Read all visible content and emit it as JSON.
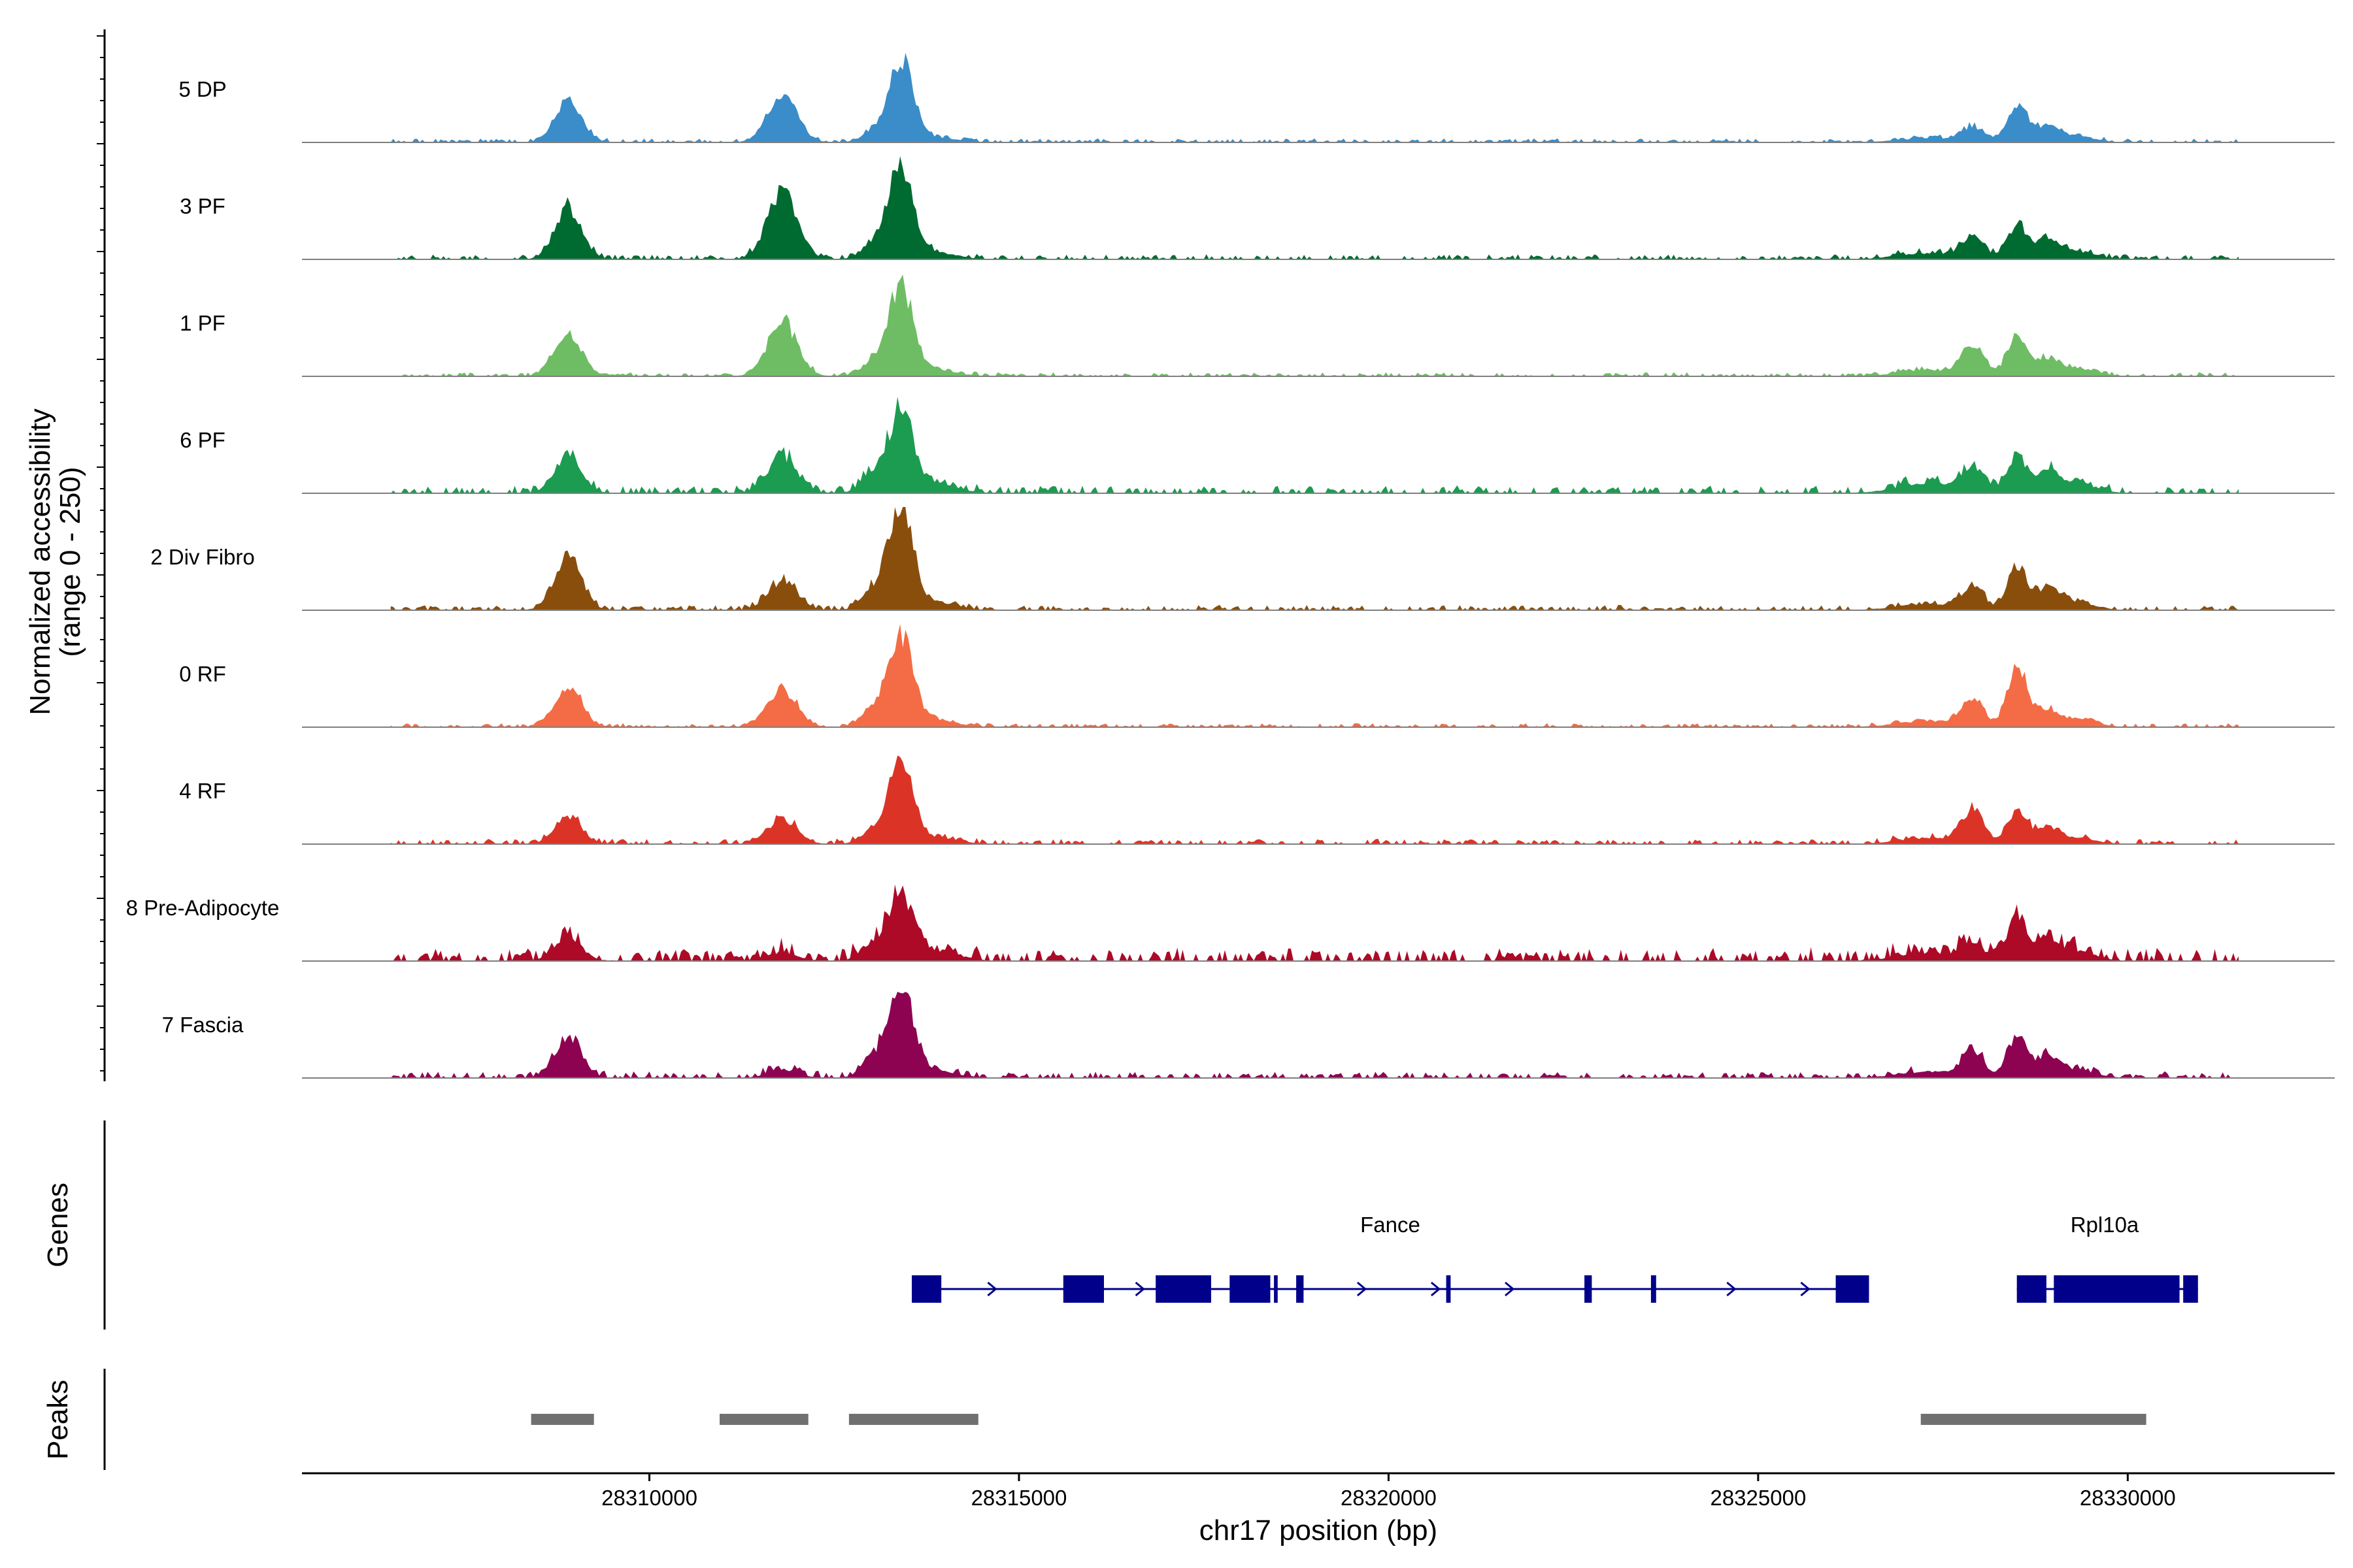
{
  "chart_data": {
    "type": "area",
    "title": "",
    "xlabel": "chr17 position (bp)",
    "ylabel": "Normalized accessibility",
    "ylabel_sub": "(range 0 - 250)",
    "y_range": [
      0,
      250
    ],
    "xlim": [
      28305300,
      28332800
    ],
    "x_ticks": [
      28310000,
      28315000,
      28320000,
      28325000,
      28330000
    ],
    "x_tick_labels": [
      "28310000",
      "28315000",
      "28320000",
      "28325000",
      "28330000"
    ],
    "track_labels": {
      "genes": "Genes",
      "peaks": "Peaks"
    },
    "region": [
      28306500,
      28331500
    ],
    "peak_shape_kb": [
      [
        28308900,
        0.18,
        45
      ],
      [
        28311800,
        0.2,
        48
      ],
      [
        28313400,
        0.17,
        70
      ],
      [
        28313000,
        0.15,
        25
      ],
      [
        28313900,
        0.28,
        20
      ],
      [
        28327900,
        0.15,
        25
      ],
      [
        28328500,
        0.13,
        55
      ],
      [
        28328900,
        0.15,
        25
      ],
      [
        28329300,
        0.25,
        15
      ],
      [
        28327300,
        0.4,
        12
      ]
    ],
    "series": [
      {
        "name": "5 DP",
        "color": "#3A8DC9",
        "peaks": [
          100,
          110,
          200,
          20,
          10,
          35,
          90,
          40,
          15,
          10
        ],
        "noise": 3,
        "seed": 1
      },
      {
        "name": "3 PF",
        "color": "#006B31",
        "peaks": [
          120,
          160,
          220,
          30,
          15,
          50,
          80,
          40,
          20,
          15
        ],
        "noise": 4,
        "seed": 2
      },
      {
        "name": "1 PF",
        "color": "#6EBD64",
        "peaks": [
          110,
          130,
          220,
          30,
          12,
          70,
          100,
          40,
          20,
          15
        ],
        "noise": 3,
        "seed": 3
      },
      {
        "name": "6 PF",
        "color": "#1B9C50",
        "peaks": [
          90,
          90,
          200,
          40,
          20,
          60,
          90,
          50,
          25,
          25
        ],
        "noise": 6,
        "seed": 4
      },
      {
        "name": "2 Div Fibro",
        "color": "#8A4E0C",
        "peaks": [
          130,
          70,
          250,
          40,
          15,
          50,
          110,
          50,
          20,
          15
        ],
        "noise": 4,
        "seed": 5
      },
      {
        "name": "0 RF",
        "color": "#F46C45",
        "peaks": [
          100,
          90,
          220,
          40,
          15,
          60,
          150,
          40,
          20,
          15
        ],
        "noise": 3,
        "seed": 6
      },
      {
        "name": "4 RF",
        "color": "#DB3427",
        "peaks": [
          70,
          60,
          200,
          30,
          15,
          80,
          80,
          40,
          15,
          15
        ],
        "noise": 4,
        "seed": 7
      },
      {
        "name": "8 Pre-Adipocyte",
        "color": "#AD0A28",
        "peaks": [
          60,
          20,
          160,
          40,
          25,
          40,
          110,
          50,
          25,
          20
        ],
        "noise": 10,
        "seed": 8
      },
      {
        "name": "7 Fascia",
        "color": "#8E0252",
        "peaks": [
          100,
          20,
          220,
          40,
          15,
          60,
          100,
          50,
          20,
          15
        ],
        "noise": 5,
        "seed": 9
      }
    ],
    "genes": [
      {
        "name": "Fance",
        "start": 28313550,
        "end": 28326500,
        "strand": "+",
        "exons": [
          [
            28313550,
            28313950
          ],
          [
            28315600,
            28316150
          ],
          [
            28316850,
            28317600
          ],
          [
            28317850,
            28318400
          ],
          [
            28318450,
            28318500
          ],
          [
            28318750,
            28318850
          ],
          [
            28320780,
            28320840
          ],
          [
            28322650,
            28322750
          ],
          [
            28323550,
            28323620
          ],
          [
            28326050,
            28326500
          ]
        ]
      },
      {
        "name": "Rpl10a",
        "start": 28328500,
        "end": 28330950,
        "strand": "+",
        "exons": [
          [
            28328500,
            28328900
          ],
          [
            28329000,
            28330700
          ],
          [
            28330750,
            28330950
          ]
        ]
      }
    ],
    "peaks": [
      [
        28308400,
        28309250
      ],
      [
        28310950,
        28312150
      ],
      [
        28312700,
        28314450
      ],
      [
        28327200,
        28330250
      ]
    ]
  }
}
